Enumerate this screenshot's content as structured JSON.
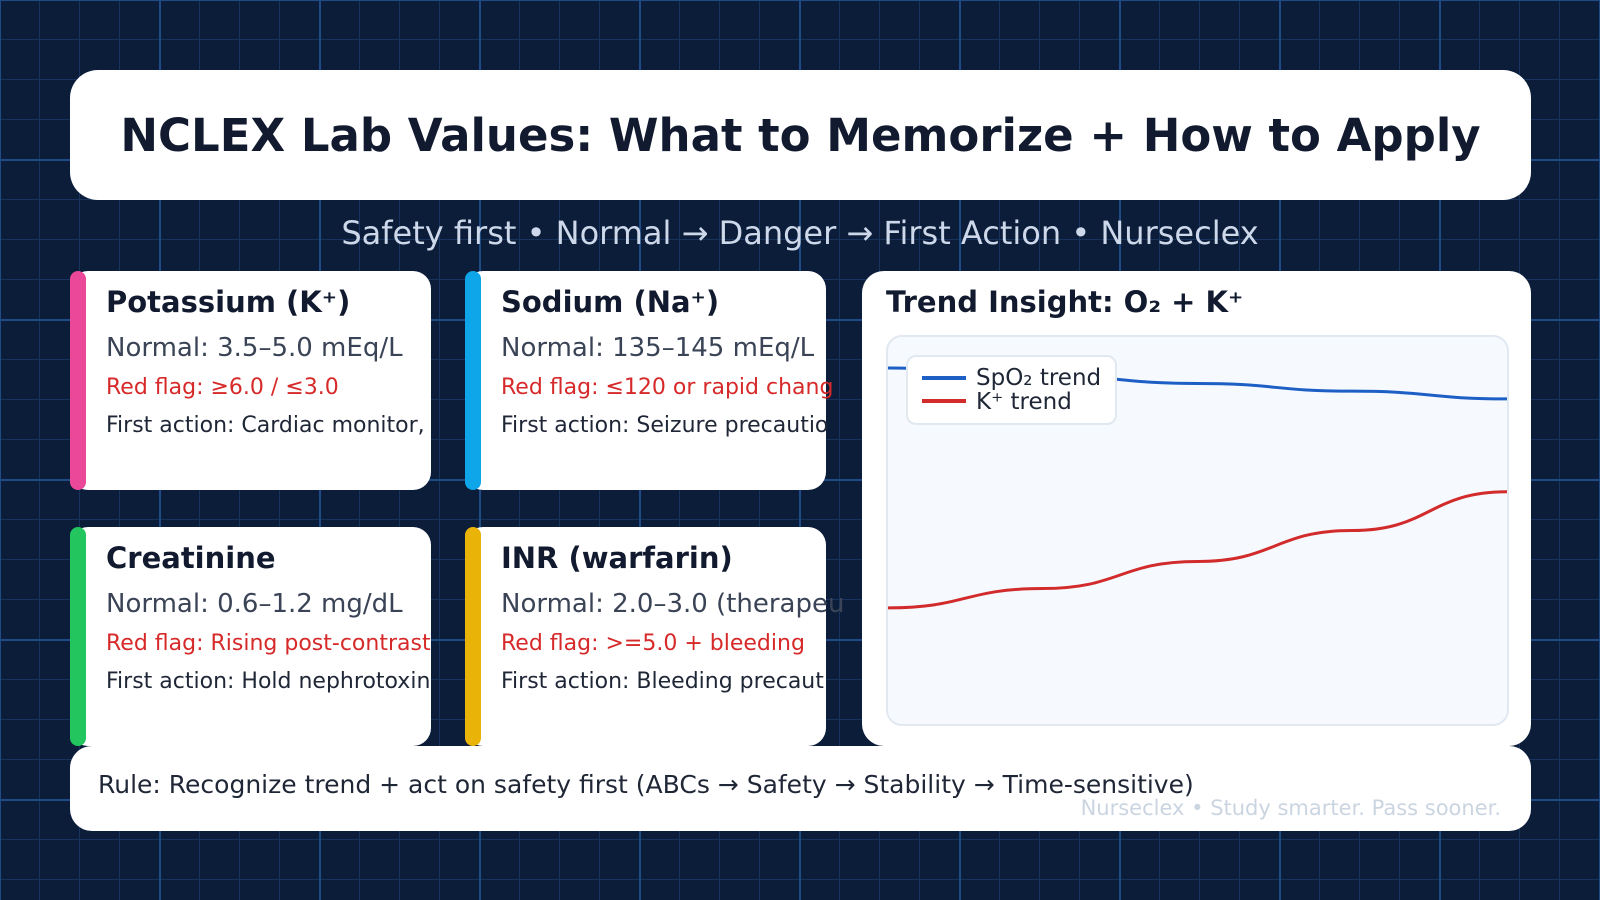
{
  "title": "NCLEX Lab Values: What to Memorize + How to Apply",
  "subtitle": "Safety first • Normal → Danger → First Action • Nurseclex",
  "cards": [
    {
      "title": "Potassium (K⁺)",
      "normal": "Normal: 3.5–5.0 mEq/L",
      "red_flag": "Red flag: ≥6.0 / ≤3.0",
      "first_action": "First action: Cardiac monitor,",
      "accent": "#ec4899"
    },
    {
      "title": "Sodium (Na⁺)",
      "normal": "Normal: 135–145 mEq/L",
      "red_flag": "Red flag: ≤120 or rapid chang",
      "first_action": "First action: Seizure precautio",
      "accent": "#0ea5e9"
    },
    {
      "title": "Creatinine",
      "normal": "Normal: 0.6–1.2 mg/dL",
      "red_flag": "Red flag: Rising post-contrast",
      "first_action": "First action: Hold nephrotoxin",
      "accent": "#22c55e"
    },
    {
      "title": "INR (warfarin)",
      "normal": "Normal: 2.0–3.0 (therapeu",
      "red_flag": "Red flag: >=5.0 + bleeding",
      "first_action": "First action: Bleeding precaut",
      "accent": "#eab308"
    }
  ],
  "chart_data": {
    "type": "line",
    "title": "Trend Insight: O₂ + K⁺",
    "x": [
      0,
      1,
      2,
      3,
      4
    ],
    "ylim": [
      0,
      100
    ],
    "grid": false,
    "legend": "top-left",
    "series": [
      {
        "name": "SpO₂ trend",
        "color": "#1d5fc4",
        "values": [
          92,
          90,
          88,
          86,
          84
        ]
      },
      {
        "name": "K⁺ trend",
        "color": "#d22b2b",
        "values": [
          30,
          35,
          42,
          50,
          60
        ]
      }
    ]
  },
  "rule": "Rule: Recognize trend + act on safety first (ABCs → Safety → Stability → Time-sensitive)",
  "footer": "Nurseclex • Study smarter. Pass sooner."
}
